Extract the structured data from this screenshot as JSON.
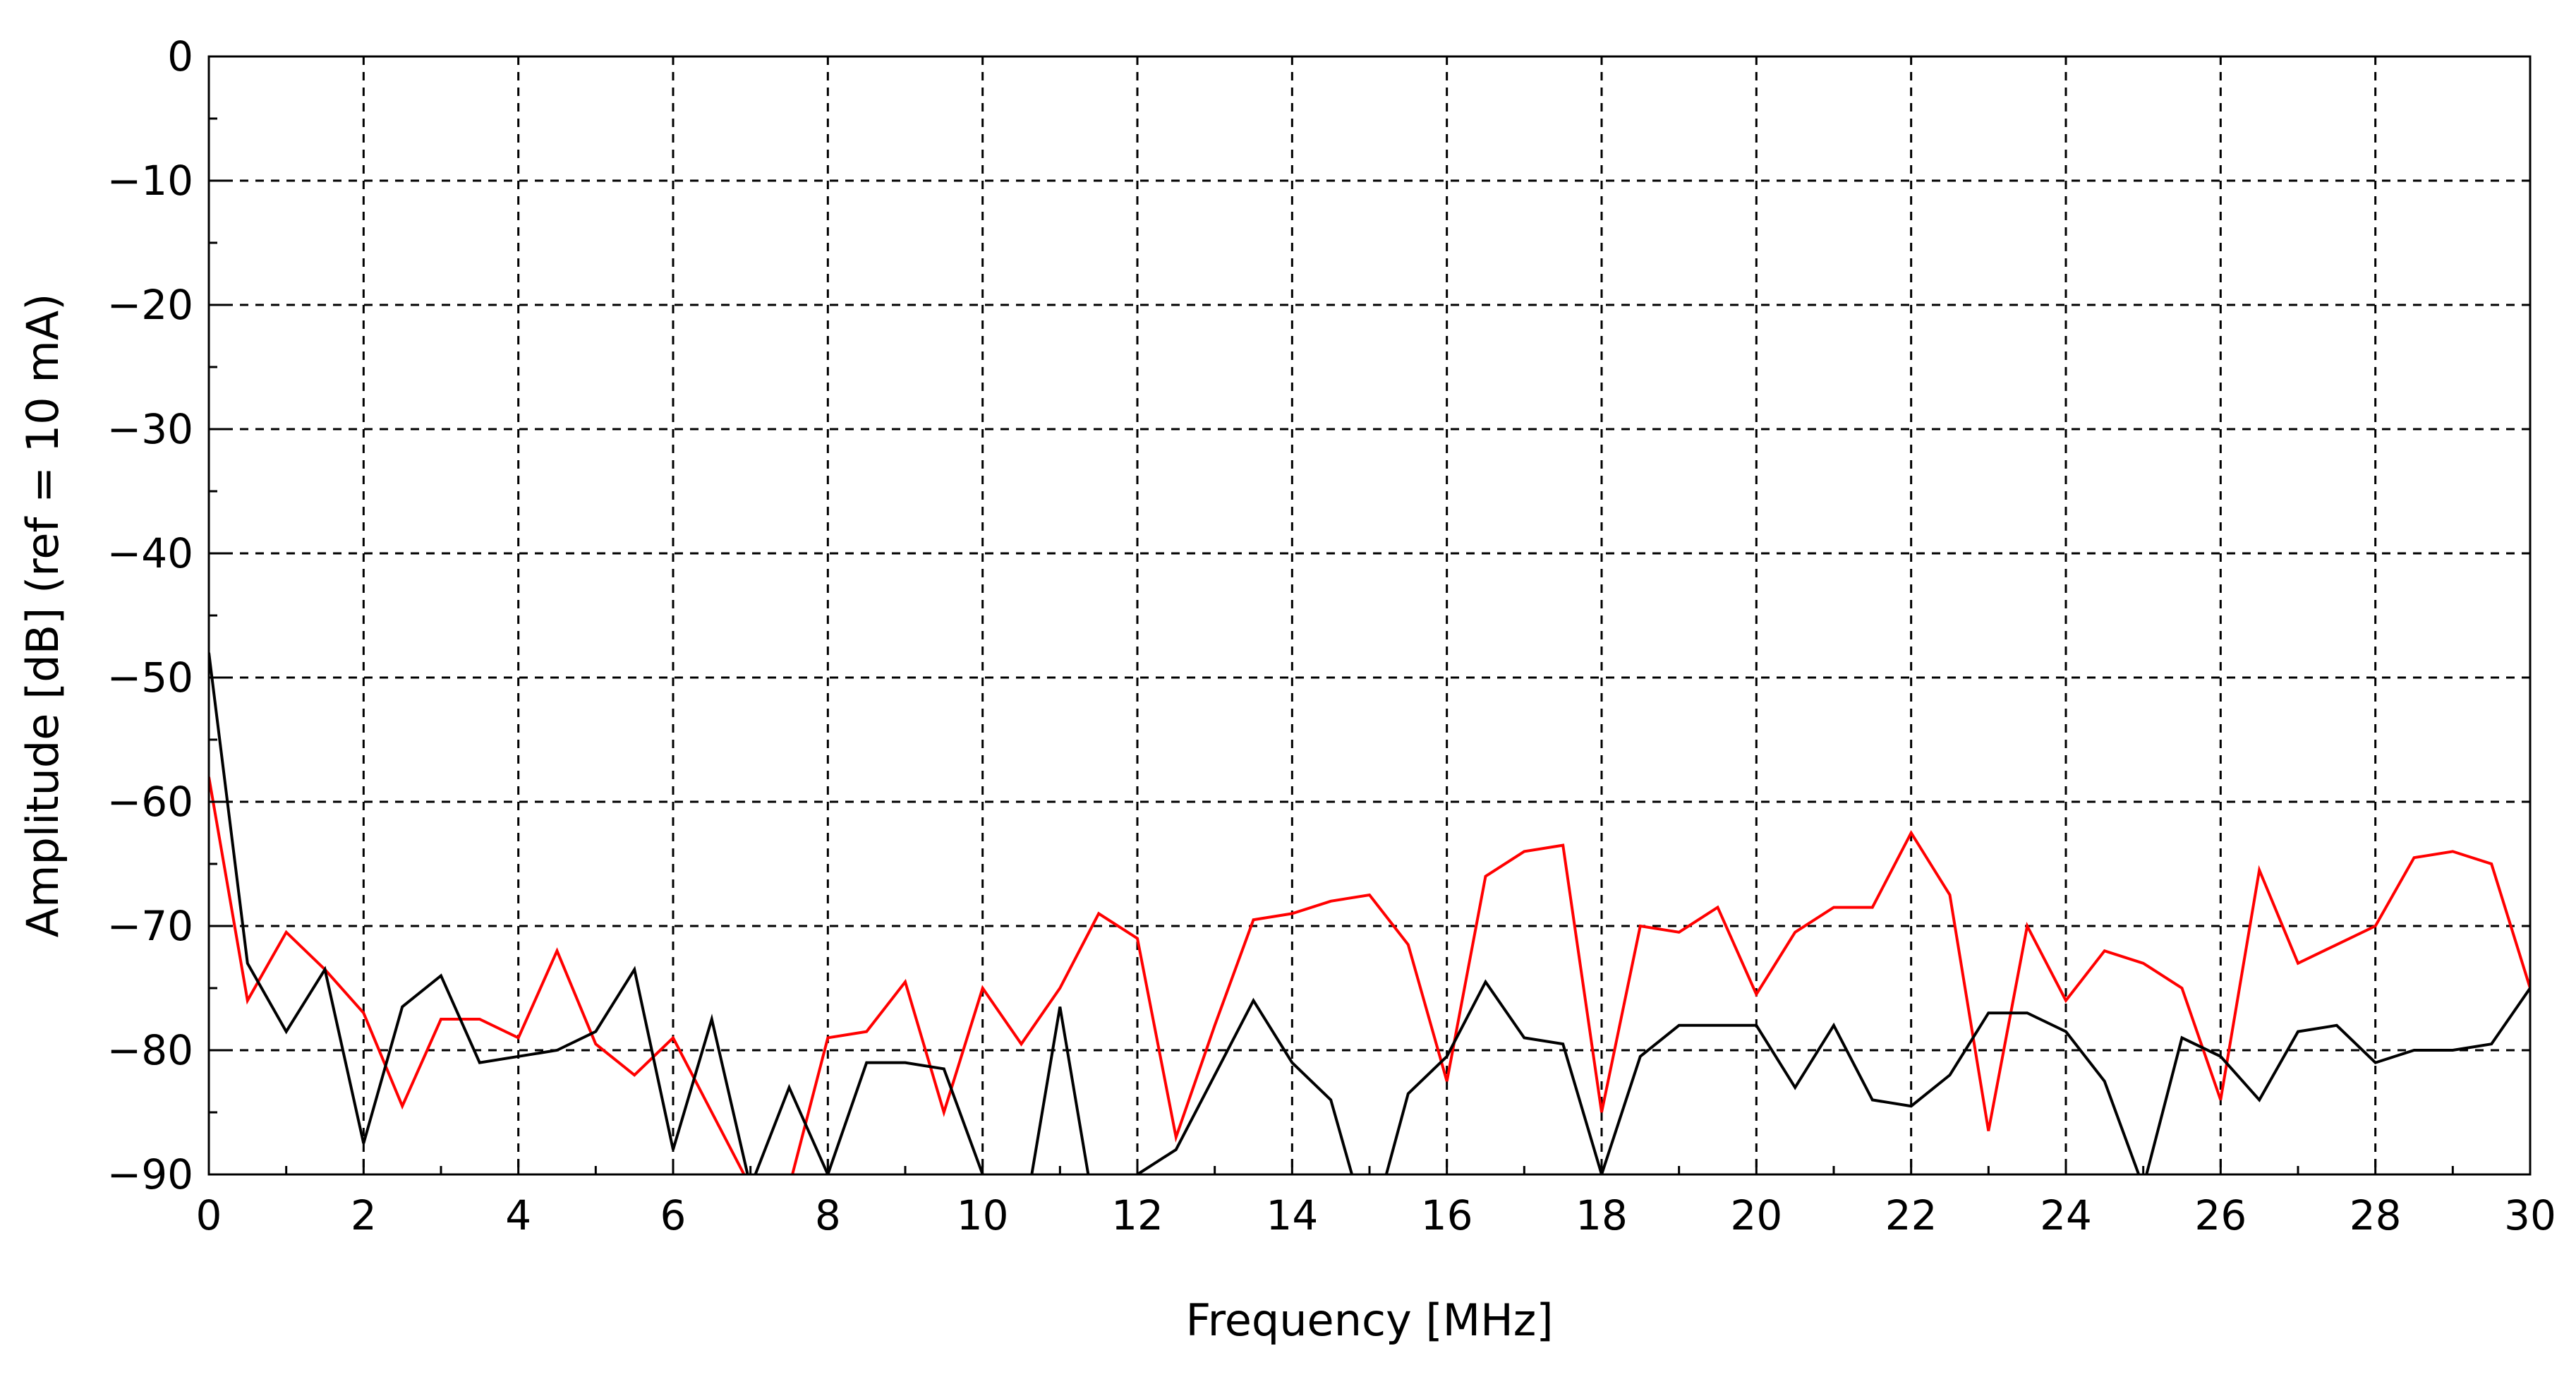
{
  "chart_data": {
    "type": "line",
    "xlabel": "Frequency [MHz]",
    "ylabel": "Amplitude [dB] (ref = 10 mA)",
    "xlim": [
      0,
      30
    ],
    "ylim": [
      -90,
      0
    ],
    "xticks": [
      0,
      2,
      4,
      6,
      8,
      10,
      12,
      14,
      16,
      18,
      20,
      22,
      24,
      26,
      28,
      30
    ],
    "yticks": [
      0,
      -10,
      -20,
      -30,
      -40,
      -50,
      -60,
      -70,
      -80,
      -90
    ],
    "grid": true,
    "x": [
      0,
      0.5,
      1,
      1.5,
      2,
      2.5,
      3,
      3.5,
      4,
      4.5,
      5,
      5.5,
      6,
      6.5,
      7,
      7.5,
      8,
      8.5,
      9,
      9.5,
      10,
      10.5,
      11,
      11.5,
      12,
      12.5,
      13,
      13.5,
      14,
      14.5,
      15,
      15.5,
      16,
      16.5,
      17,
      17.5,
      18,
      18.5,
      19,
      19.5,
      20,
      20.5,
      21,
      21.5,
      22,
      22.5,
      23,
      23.5,
      24,
      24.5,
      25,
      25.5,
      26,
      26.5,
      27,
      27.5,
      28,
      28.5,
      29,
      29.5,
      30
    ],
    "series": [
      {
        "color": "#ff0000",
        "values": [
          -58,
          -76,
          -70.5,
          -73.5,
          -77,
          -84.5,
          -77.5,
          -77.5,
          -79,
          -72,
          -79.5,
          -82,
          -79,
          -85,
          -91,
          -91,
          -79,
          -78.5,
          -74.5,
          -85,
          -75,
          -79.5,
          -75,
          -69,
          -71,
          -87,
          -78,
          -69.5,
          -69,
          -68,
          -67.5,
          -71.5,
          -82.5,
          -66,
          -64,
          -63.5,
          -85,
          -70,
          -70.5,
          -68.5,
          -75.5,
          -70.5,
          -68.5,
          -68.5,
          -62.5,
          -67.5,
          -86.5,
          -70,
          -76,
          -72,
          -73,
          -75,
          -84,
          -65.5,
          -73,
          -71.5,
          -70,
          -64.5,
          -64,
          -65,
          -75
        ]
      },
      {
        "color": "#000000",
        "values": [
          -48,
          -73,
          -78.5,
          -73.5,
          -87.5,
          -76.5,
          -74,
          -81,
          -80.5,
          -80,
          -78.5,
          -73.5,
          -88,
          -77.5,
          -91,
          -83,
          -90,
          -81,
          -81,
          -81.5,
          -90,
          -95,
          -76.5,
          -95,
          -90,
          -88,
          -82,
          -76,
          -81,
          -84,
          -95,
          -83.5,
          -80.5,
          -74.5,
          -79,
          -79.5,
          -90,
          -80.5,
          -78,
          -78,
          -78,
          -83,
          -78,
          -84,
          -84.5,
          -82,
          -77,
          -77,
          -78.5,
          -82.5,
          -91,
          -79,
          -80.5,
          -84,
          -78.5,
          -78,
          -81,
          -80,
          -80,
          -79.5,
          -75
        ]
      }
    ]
  }
}
